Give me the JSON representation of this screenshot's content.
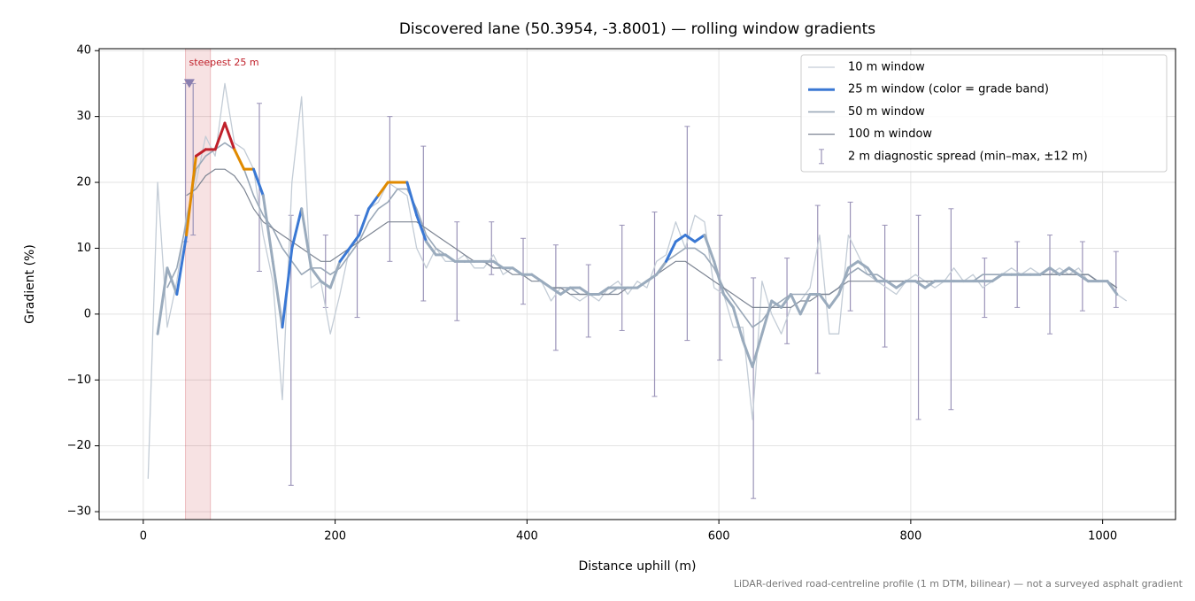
{
  "chart_data": {
    "type": "line",
    "title": "Discovered lane (50.3954, -3.8001) — rolling window gradients",
    "x_label": "Distance uphill (m)",
    "y_label": "Gradient (%)",
    "footnote": "LiDAR-derived road-centreline profile (1 m DTM, bilinear) — not a surveyed asphalt gradient",
    "xlim": [
      -46,
      1076
    ],
    "ylim": [
      -31.2,
      40.3
    ],
    "xticks": [
      0,
      200,
      400,
      600,
      800,
      1000
    ],
    "yticks": [
      {
        "value": -30,
        "label": "−30"
      },
      {
        "value": -20,
        "label": "−20"
      },
      {
        "value": -10,
        "label": "−10"
      },
      0,
      10,
      20,
      30,
      40
    ],
    "grid": true,
    "legend": "upper right",
    "x": [
      5,
      15,
      25,
      35,
      45,
      55,
      65,
      75,
      85,
      95,
      105,
      115,
      125,
      135,
      145,
      155,
      165,
      175,
      185,
      195,
      205,
      215,
      225,
      235,
      245,
      255,
      265,
      275,
      285,
      295,
      305,
      315,
      325,
      335,
      345,
      355,
      365,
      375,
      385,
      395,
      405,
      415,
      425,
      435,
      445,
      455,
      465,
      475,
      485,
      495,
      505,
      515,
      525,
      535,
      545,
      555,
      565,
      575,
      585,
      595,
      605,
      615,
      625,
      635,
      645,
      655,
      665,
      675,
      685,
      695,
      705,
      715,
      725,
      735,
      745,
      755,
      765,
      775,
      785,
      795,
      805,
      815,
      825,
      835,
      845,
      855,
      865,
      875,
      885,
      895,
      905,
      915,
      925,
      935,
      945,
      955,
      965,
      975,
      985,
      995,
      1005,
      1015,
      1025
    ],
    "series": [
      {
        "name": "10 m window",
        "color": "#c3ccd6",
        "width": 1.3,
        "values": [
          -25,
          20,
          -2,
          5,
          15,
          20,
          27,
          24,
          35,
          26,
          25,
          22,
          12,
          5,
          -13,
          20,
          33,
          4,
          5,
          -3,
          3,
          10,
          12,
          16,
          17,
          20,
          19,
          18,
          10,
          7,
          10,
          8,
          8,
          9,
          7,
          7,
          9,
          6,
          7,
          6,
          6,
          5,
          2,
          4,
          3,
          2,
          3,
          2,
          4,
          5,
          3,
          5,
          4,
          8,
          9,
          14,
          10,
          15,
          14,
          4,
          3,
          -2,
          -2,
          -16,
          5,
          0,
          -3,
          1,
          2,
          4,
          12,
          -3,
          -3,
          12,
          9,
          6,
          5,
          4,
          3,
          5,
          6,
          5,
          4,
          5,
          7,
          5,
          6,
          4,
          5,
          6,
          7,
          6,
          7,
          6,
          6,
          7,
          6,
          7,
          5,
          5,
          5,
          3,
          2
        ]
      },
      {
        "name": "25 m window (color = grade band)",
        "color": "#3a78d4",
        "width": 3,
        "values": [
          null,
          -3,
          7,
          3,
          12,
          24,
          25,
          25,
          29,
          25,
          22,
          22,
          18,
          8,
          -2,
          10,
          16,
          7,
          5,
          4,
          8,
          10,
          12,
          16,
          18,
          20,
          20,
          20,
          15,
          11,
          9,
          9,
          8,
          8,
          8,
          8,
          8,
          7,
          7,
          6,
          6,
          5,
          4,
          3,
          4,
          4,
          3,
          3,
          4,
          4,
          4,
          4,
          5,
          6,
          8,
          11,
          12,
          11,
          12,
          8,
          3,
          1,
          -4,
          -8,
          -3,
          2,
          1,
          3,
          0,
          3,
          3,
          1,
          3,
          7,
          8,
          7,
          5,
          5,
          4,
          5,
          5,
          4,
          5,
          5,
          5,
          5,
          5,
          5,
          5,
          6,
          6,
          6,
          6,
          6,
          7,
          6,
          7,
          6,
          5,
          5,
          5,
          3,
          null
        ],
        "colors": [
          null,
          "#9aabbd",
          "#9aabbd",
          "#9aabbd",
          "#3a78d4",
          "#e08a00",
          "#c0202a",
          "#c0202a",
          "#c0202a",
          "#c0202a",
          "#e08a00",
          "#e08a00",
          "#3a78d4",
          "#9aabbd",
          "#9aabbd",
          "#3a78d4",
          "#3a78d4",
          "#9aabbd",
          "#9aabbd",
          "#9aabbd",
          "#9aabbd",
          "#3a78d4",
          "#3a78d4",
          "#3a78d4",
          "#3a78d4",
          "#e08a00",
          "#e08a00",
          "#e08a00",
          "#3a78d4",
          "#3a78d4",
          "#9aabbd",
          "#9aabbd",
          "#9aabbd",
          "#9aabbd",
          "#9aabbd",
          "#9aabbd",
          "#9aabbd",
          "#9aabbd",
          "#9aabbd",
          "#9aabbd",
          "#9aabbd",
          "#9aabbd",
          "#9aabbd",
          "#9aabbd",
          "#9aabbd",
          "#9aabbd",
          "#9aabbd",
          "#9aabbd",
          "#9aabbd",
          "#9aabbd",
          "#9aabbd",
          "#9aabbd",
          "#9aabbd",
          "#9aabbd",
          "#9aabbd",
          "#3a78d4",
          "#3a78d4",
          "#3a78d4",
          "#3a78d4",
          "#9aabbd",
          "#9aabbd",
          "#9aabbd",
          "#9aabbd",
          "#9aabbd",
          "#9aabbd",
          "#9aabbd",
          "#9aabbd",
          "#9aabbd",
          "#9aabbd",
          "#9aabbd",
          "#9aabbd",
          "#9aabbd",
          "#9aabbd",
          "#9aabbd",
          "#9aabbd",
          "#9aabbd",
          "#9aabbd",
          "#9aabbd",
          "#9aabbd",
          "#9aabbd",
          "#9aabbd",
          "#9aabbd",
          "#9aabbd",
          "#9aabbd",
          "#9aabbd",
          "#9aabbd",
          "#9aabbd",
          "#9aabbd",
          "#9aabbd",
          "#9aabbd",
          "#9aabbd",
          "#9aabbd",
          "#9aabbd",
          "#9aabbd",
          "#9aabbd",
          "#9aabbd",
          "#9aabbd",
          "#9aabbd",
          "#9aabbd",
          "#9aabbd",
          "#9aabbd",
          "#9aabbd",
          null
        ]
      },
      {
        "name": "50 m window",
        "color": "#9aa8b8",
        "width": 1.6,
        "values": [
          null,
          null,
          4,
          7,
          14,
          22,
          24,
          25,
          26,
          25,
          22,
          18,
          15,
          13,
          10,
          8,
          6,
          7,
          7,
          6,
          7,
          9,
          11,
          14,
          16,
          17,
          19,
          19,
          16,
          12,
          10,
          9,
          8,
          8,
          8,
          8,
          7,
          7,
          7,
          6,
          6,
          5,
          4,
          4,
          4,
          3,
          3,
          3,
          3,
          4,
          4,
          4,
          5,
          6,
          8,
          9,
          10,
          10,
          9,
          7,
          4,
          2,
          0,
          -2,
          -1,
          1,
          2,
          3,
          3,
          3,
          3,
          3,
          4,
          6,
          7,
          6,
          6,
          5,
          5,
          5,
          5,
          5,
          5,
          5,
          5,
          5,
          5,
          6,
          6,
          6,
          6,
          6,
          6,
          6,
          6,
          6,
          6,
          6,
          6,
          5,
          5,
          4,
          null
        ]
      },
      {
        "name": "100 m window",
        "color": "#7d8593",
        "width": 1.2,
        "values": [
          null,
          null,
          null,
          null,
          18,
          19,
          21,
          22,
          22,
          21,
          19,
          16,
          14,
          13,
          12,
          11,
          10,
          9,
          8,
          8,
          9,
          10,
          11,
          12,
          13,
          14,
          14,
          14,
          14,
          13,
          12,
          11,
          10,
          9,
          8,
          8,
          7,
          7,
          6,
          6,
          5,
          5,
          4,
          4,
          3,
          3,
          3,
          3,
          3,
          3,
          4,
          4,
          5,
          6,
          7,
          8,
          8,
          7,
          6,
          5,
          4,
          3,
          2,
          1,
          1,
          1,
          1,
          1,
          2,
          2,
          3,
          3,
          4,
          5,
          5,
          5,
          5,
          5,
          5,
          5,
          5,
          5,
          5,
          5,
          5,
          5,
          5,
          5,
          5,
          6,
          6,
          6,
          6,
          6,
          6,
          6,
          6,
          6,
          6,
          5,
          5,
          4,
          null
        ]
      }
    ],
    "spread": {
      "name": "2 m diagnostic spread (min–max, ±12 m)",
      "color": "#9a93b8",
      "x": [
        44,
        52,
        121,
        154,
        190,
        223,
        257,
        292,
        327,
        363,
        396,
        430,
        464,
        499,
        533,
        567,
        601,
        636,
        671,
        703,
        737,
        773,
        808,
        842,
        877,
        911,
        945,
        979,
        1014
      ],
      "low": [
        11,
        12,
        6.5,
        -26,
        1,
        -0.5,
        8,
        2,
        -1,
        6,
        1.5,
        -5.5,
        -3.5,
        -2.5,
        -12.5,
        -4,
        -7,
        -28,
        -4.5,
        -9,
        0.5,
        -5,
        -16,
        -14.5,
        -0.5,
        1,
        -3,
        0.5,
        1
      ],
      "high": [
        35,
        35,
        32,
        15,
        12,
        15,
        30,
        25.5,
        14,
        14,
        11.5,
        10.5,
        7.5,
        13.5,
        15.5,
        28.5,
        15,
        5.5,
        8.5,
        16.5,
        17,
        13.5,
        15,
        16,
        8.5,
        11,
        12,
        11,
        9.5
      ]
    },
    "highlight": {
      "label": "steepest 25 m",
      "color": "#c0202a",
      "x": [
        44,
        70
      ],
      "marker": [
        48,
        35
      ]
    }
  }
}
